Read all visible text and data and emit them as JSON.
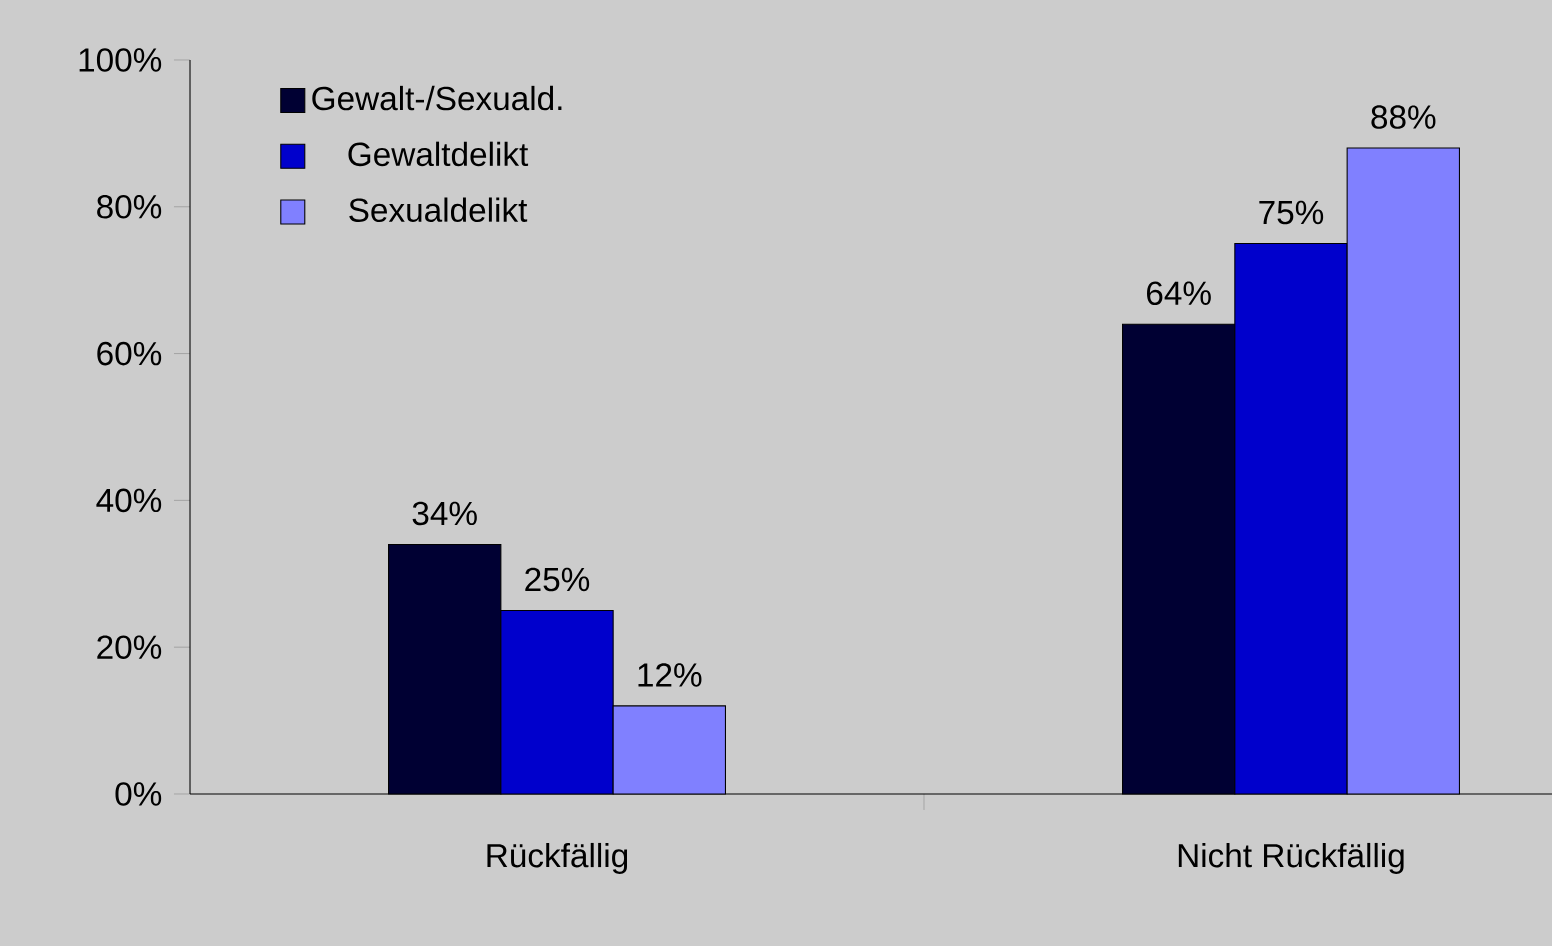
{
  "chart_data": {
    "type": "bar",
    "categories": [
      "Rückfällig",
      "Nicht Rückfällig"
    ],
    "series": [
      {
        "name": "Gewalt-/Sexuald.",
        "color": "#000033",
        "values": [
          34,
          64
        ],
        "value_labels": [
          "34%",
          "64%"
        ]
      },
      {
        "name": "Gewaltdelikt",
        "color": "#0000cc",
        "values": [
          25,
          75
        ],
        "value_labels": [
          "25%",
          "75%"
        ]
      },
      {
        "name": "Sexualdelikt",
        "color": "#8080ff",
        "values": [
          12,
          88
        ],
        "value_labels": [
          "12%",
          "88%"
        ]
      }
    ],
    "ylim": [
      0,
      100
    ],
    "yticks": [
      {
        "value": 0,
        "label": "0%"
      },
      {
        "value": 20,
        "label": "20%"
      },
      {
        "value": 40,
        "label": "40%"
      },
      {
        "value": 60,
        "label": "60%"
      },
      {
        "value": 80,
        "label": "80%"
      },
      {
        "value": 100,
        "label": "100%"
      }
    ],
    "grid": false,
    "legend": "top left"
  }
}
